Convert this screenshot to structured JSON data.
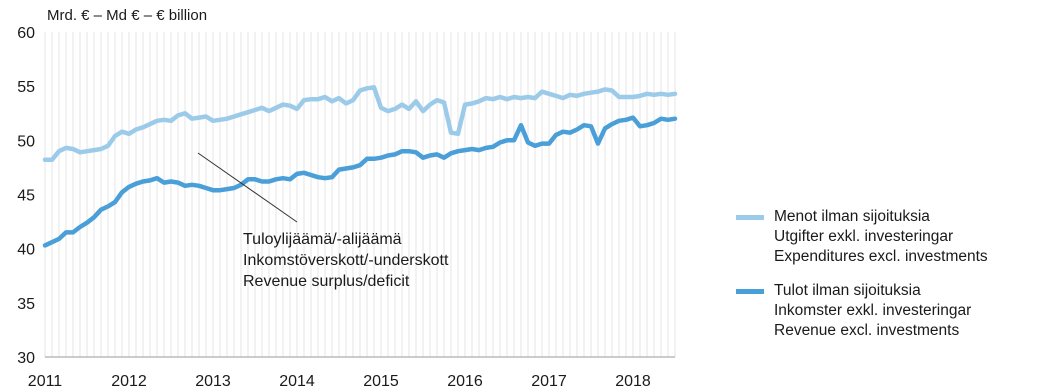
{
  "chart_data": {
    "type": "line",
    "unit_label": "Mrd. € – Md € – € billion",
    "ylim": [
      30,
      60
    ],
    "yticks": [
      30,
      35,
      40,
      45,
      50,
      55,
      60
    ],
    "xlim": [
      2011,
      2018.5
    ],
    "xticks": [
      2011,
      2012,
      2013,
      2014,
      2015,
      2016,
      2017,
      2018
    ],
    "grid": "vertical monthly lines",
    "legend_position": "right",
    "series": [
      {
        "name": "Menot ilman sijoituksia / Utgifter exkl. investeringar / Expenditures excl. investments",
        "legend_lines": [
          "Menot ilman sijoituksia",
          "Utgifter exkl. investeringar",
          "Expenditures excl. investments"
        ],
        "color": "#9ccbea",
        "x": [
          2011.0,
          2011.083,
          2011.167,
          2011.25,
          2011.333,
          2011.417,
          2011.5,
          2011.583,
          2011.667,
          2011.75,
          2011.833,
          2011.917,
          2012.0,
          2012.083,
          2012.167,
          2012.25,
          2012.333,
          2012.417,
          2012.5,
          2012.583,
          2012.667,
          2012.75,
          2012.833,
          2012.917,
          2013.0,
          2013.083,
          2013.167,
          2013.25,
          2013.333,
          2013.417,
          2013.5,
          2013.583,
          2013.667,
          2013.75,
          2013.833,
          2013.917,
          2014.0,
          2014.083,
          2014.167,
          2014.25,
          2014.333,
          2014.417,
          2014.5,
          2014.583,
          2014.667,
          2014.75,
          2014.833,
          2014.917,
          2015.0,
          2015.083,
          2015.167,
          2015.25,
          2015.333,
          2015.417,
          2015.5,
          2015.583,
          2015.667,
          2015.75,
          2015.833,
          2015.917,
          2016.0,
          2016.083,
          2016.167,
          2016.25,
          2016.333,
          2016.417,
          2016.5,
          2016.583,
          2016.667,
          2016.75,
          2016.833,
          2016.917,
          2017.0,
          2017.083,
          2017.167,
          2017.25,
          2017.333,
          2017.417,
          2017.5,
          2017.583,
          2017.667,
          2017.75,
          2017.833,
          2017.917,
          2018.0,
          2018.083,
          2018.167,
          2018.25,
          2018.333,
          2018.417,
          2018.5
        ],
        "values": [
          48.2,
          48.2,
          49.0,
          49.3,
          49.2,
          48.9,
          49.0,
          49.1,
          49.2,
          49.5,
          50.4,
          50.8,
          50.6,
          51.0,
          51.2,
          51.5,
          51.8,
          51.9,
          51.8,
          52.3,
          52.5,
          52.0,
          52.1,
          52.2,
          51.8,
          51.9,
          52.0,
          52.2,
          52.4,
          52.6,
          52.8,
          53.0,
          52.7,
          53.0,
          53.3,
          53.2,
          52.9,
          53.7,
          53.8,
          53.8,
          54.0,
          53.6,
          53.9,
          53.4,
          53.7,
          54.6,
          54.8,
          54.9,
          53.0,
          52.7,
          52.9,
          53.3,
          52.9,
          53.6,
          52.7,
          53.3,
          53.7,
          53.5,
          50.7,
          50.6,
          53.3,
          53.4,
          53.6,
          53.9,
          53.8,
          54.0,
          53.8,
          54.0,
          53.9,
          54.0,
          53.9,
          54.5,
          54.3,
          54.1,
          53.9,
          54.2,
          54.1,
          54.3,
          54.4,
          54.5,
          54.7,
          54.6,
          54.0,
          54.0,
          54.0,
          54.1,
          54.3,
          54.2,
          54.3,
          54.2,
          54.3
        ]
      },
      {
        "name": "Tulot ilman sijoituksia / Inkomster exkl. investeringar / Revenue excl. investments",
        "legend_lines": [
          "Tulot ilman sijoituksia",
          "Inkomster exkl. investeringar",
          "Revenue excl. investments"
        ],
        "color": "#4a9fd9",
        "x": [
          2011.0,
          2011.083,
          2011.167,
          2011.25,
          2011.333,
          2011.417,
          2011.5,
          2011.583,
          2011.667,
          2011.75,
          2011.833,
          2011.917,
          2012.0,
          2012.083,
          2012.167,
          2012.25,
          2012.333,
          2012.417,
          2012.5,
          2012.583,
          2012.667,
          2012.75,
          2012.833,
          2012.917,
          2013.0,
          2013.083,
          2013.167,
          2013.25,
          2013.333,
          2013.417,
          2013.5,
          2013.583,
          2013.667,
          2013.75,
          2013.833,
          2013.917,
          2014.0,
          2014.083,
          2014.167,
          2014.25,
          2014.333,
          2014.417,
          2014.5,
          2014.583,
          2014.667,
          2014.75,
          2014.833,
          2014.917,
          2015.0,
          2015.083,
          2015.167,
          2015.25,
          2015.333,
          2015.417,
          2015.5,
          2015.583,
          2015.667,
          2015.75,
          2015.833,
          2015.917,
          2016.0,
          2016.083,
          2016.167,
          2016.25,
          2016.333,
          2016.417,
          2016.5,
          2016.583,
          2016.667,
          2016.75,
          2016.833,
          2016.917,
          2017.0,
          2017.083,
          2017.167,
          2017.25,
          2017.333,
          2017.417,
          2017.5,
          2017.583,
          2017.667,
          2017.75,
          2017.833,
          2017.917,
          2018.0,
          2018.083,
          2018.167,
          2018.25,
          2018.333,
          2018.417,
          2018.5
        ],
        "values": [
          40.3,
          40.6,
          40.9,
          41.5,
          41.5,
          42.0,
          42.4,
          42.9,
          43.6,
          43.9,
          44.3,
          45.2,
          45.7,
          46.0,
          46.2,
          46.3,
          46.5,
          46.1,
          46.2,
          46.1,
          45.8,
          45.9,
          45.8,
          45.6,
          45.4,
          45.4,
          45.5,
          45.6,
          45.9,
          46.4,
          46.4,
          46.2,
          46.2,
          46.4,
          46.5,
          46.4,
          46.9,
          47.0,
          46.8,
          46.6,
          46.5,
          46.6,
          47.3,
          47.4,
          47.5,
          47.7,
          48.3,
          48.3,
          48.4,
          48.6,
          48.7,
          49.0,
          49.0,
          48.9,
          48.4,
          48.6,
          48.7,
          48.4,
          48.8,
          49.0,
          49.1,
          49.2,
          49.1,
          49.3,
          49.4,
          49.8,
          50.0,
          50.0,
          51.4,
          49.8,
          49.5,
          49.7,
          49.7,
          50.5,
          50.8,
          50.7,
          51.0,
          51.4,
          51.3,
          49.7,
          51.1,
          51.5,
          51.8,
          51.9,
          52.1,
          51.3,
          51.4,
          51.6,
          52.0,
          51.9,
          52.0
        ]
      }
    ],
    "annotation": {
      "lines": [
        "Tuloylijäämä/-alijäämä",
        "Inkomstöverskott/-underskott",
        "Revenue surplus/deficit"
      ]
    }
  }
}
